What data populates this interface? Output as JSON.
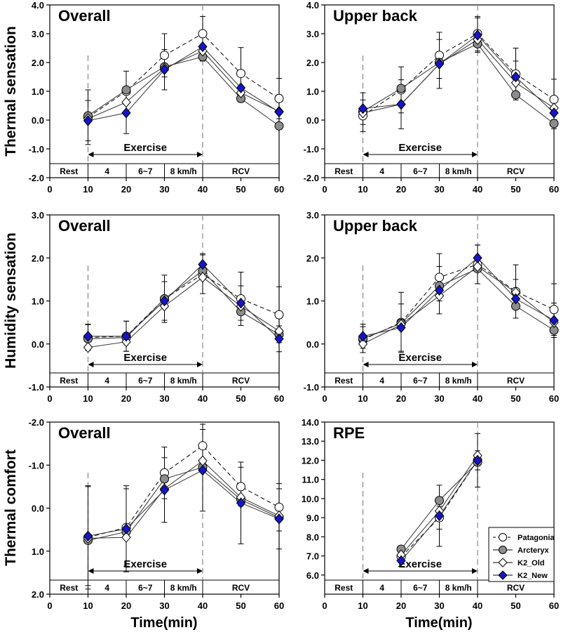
{
  "figure": {
    "x_axis_label": "Time(min)",
    "x_ticks": [
      0,
      10,
      20,
      30,
      40,
      50,
      60
    ],
    "row_labels": [
      "Thermal sensation",
      "Humidity sensation",
      "Thermal comfort"
    ]
  },
  "phases": {
    "rest": "Rest",
    "speed_1": "4",
    "speed_2": "6~7",
    "speed_3": "8 km/h",
    "recovery": "RCV",
    "exercise": "Exercise"
  },
  "legend": {
    "entries": [
      {
        "name": "Patagonia",
        "marker": "circle",
        "color": "#ffffff",
        "dash": true
      },
      {
        "name": "Arcteryx",
        "marker": "circle",
        "color": "#8c8c8c",
        "dash": false
      },
      {
        "name": "K2_Old",
        "marker": "diamond",
        "color": "#ffffff",
        "dash": false
      },
      {
        "name": "K2_New",
        "marker": "diamond",
        "color": "#1515c8",
        "dash": false
      }
    ]
  },
  "chart_data": [
    {
      "type": "line",
      "title": "Overall",
      "ylabel": "Thermal sensation",
      "xlabel": "",
      "xlim": [
        0,
        60
      ],
      "ylim": [
        -2,
        4
      ],
      "yticks": [
        -2,
        -1,
        0,
        1,
        2,
        3,
        4
      ],
      "yinvert": false,
      "x": [
        10,
        20,
        30,
        40,
        50,
        60
      ],
      "series": [
        {
          "name": "Patagonia",
          "values": [
            0.1,
            1.0,
            2.25,
            3.0,
            1.62,
            0.75
          ],
          "err": [
            0.95,
            0.7,
            0.75,
            0.6,
            0.9,
            0.7
          ]
        },
        {
          "name": "Arcteryx",
          "values": [
            0.15,
            1.05,
            1.85,
            2.2,
            0.75,
            -0.2
          ],
          "err": [
            0.0,
            0.0,
            0.0,
            0.0,
            0.0,
            0.0
          ]
        },
        {
          "name": "K2_Old",
          "values": [
            0.05,
            0.62,
            1.8,
            2.4,
            0.95,
            0.3
          ],
          "err": [
            0.0,
            0.0,
            0.0,
            0.0,
            0.0,
            0.0
          ]
        },
        {
          "name": "K2_New",
          "values": [
            -0.02,
            0.25,
            1.75,
            2.55,
            1.12,
            0.28
          ],
          "err": [
            0.7,
            0.72,
            0.7,
            0.5,
            0.5,
            0.6
          ]
        }
      ]
    },
    {
      "type": "line",
      "title": "Upper back",
      "ylabel": "",
      "xlabel": "",
      "xlim": [
        0,
        60
      ],
      "ylim": [
        -2,
        4
      ],
      "yticks": [
        -2,
        -1,
        0,
        1,
        2,
        3,
        4
      ],
      "yinvert": false,
      "x": [
        10,
        20,
        30,
        40,
        50,
        60
      ],
      "series": [
        {
          "name": "Patagonia",
          "values": [
            0.15,
            1.05,
            2.25,
            3.0,
            1.6,
            0.72
          ],
          "err": [
            0.55,
            0.8,
            0.8,
            0.6,
            0.9,
            0.7
          ]
        },
        {
          "name": "Arcteryx",
          "values": [
            0.3,
            1.1,
            2.0,
            2.65,
            0.88,
            -0.12
          ],
          "err": [
            0.0,
            0.0,
            0.0,
            0.0,
            0.0,
            0.0
          ]
        },
        {
          "name": "K2_Old",
          "values": [
            0.25,
            0.55,
            1.95,
            2.8,
            1.3,
            0.42
          ],
          "err": [
            0.0,
            0.0,
            0.0,
            0.0,
            0.0,
            0.0
          ]
        },
        {
          "name": "K2_New",
          "values": [
            0.4,
            0.55,
            1.95,
            2.95,
            1.5,
            0.25
          ],
          "err": [
            0.55,
            0.85,
            0.85,
            0.6,
            0.55,
            0.55
          ]
        }
      ]
    },
    {
      "type": "line",
      "title": "Overall",
      "ylabel": "Humidity sensation",
      "xlabel": "",
      "xlim": [
        0,
        60
      ],
      "ylim": [
        -1,
        3
      ],
      "yticks": [
        -1,
        0,
        1,
        2,
        3
      ],
      "yinvert": false,
      "x": [
        10,
        20,
        30,
        40,
        50,
        60
      ],
      "series": [
        {
          "name": "Patagonia",
          "values": [
            0.15,
            0.18,
            1.05,
            1.62,
            1.05,
            0.68
          ],
          "err": [
            0.3,
            0.35,
            0.55,
            0.45,
            0.62,
            0.65
          ]
        },
        {
          "name": "Arcteryx",
          "values": [
            0.12,
            0.15,
            1.05,
            1.7,
            0.75,
            0.22
          ],
          "err": [
            0.0,
            0.0,
            0.0,
            0.0,
            0.0,
            0.0
          ]
        },
        {
          "name": "K2_Old",
          "values": [
            -0.08,
            0.05,
            0.88,
            1.55,
            0.88,
            0.3
          ],
          "err": [
            0.0,
            0.0,
            0.0,
            0.0,
            0.0,
            0.0
          ]
        },
        {
          "name": "K2_New",
          "values": [
            0.18,
            0.18,
            1.0,
            1.85,
            0.95,
            0.12
          ],
          "err": [
            0.28,
            0.35,
            0.45,
            0.25,
            0.4,
            0.3
          ]
        }
      ]
    },
    {
      "type": "line",
      "title": "Upper back",
      "ylabel": "",
      "xlabel": "",
      "xlim": [
        0,
        60
      ],
      "ylim": [
        -1,
        3
      ],
      "yticks": [
        -1,
        0,
        1,
        2,
        3
      ],
      "yinvert": false,
      "x": [
        10,
        20,
        30,
        40,
        50,
        60
      ],
      "series": [
        {
          "name": "Patagonia",
          "values": [
            0.1,
            0.5,
            1.55,
            1.85,
            1.22,
            0.8
          ],
          "err": [
            0.3,
            0.7,
            0.55,
            0.45,
            0.62,
            0.6
          ]
        },
        {
          "name": "Arcteryx",
          "values": [
            0.12,
            0.48,
            1.35,
            1.75,
            0.88,
            0.32
          ],
          "err": [
            0.0,
            0.0,
            0.0,
            0.0,
            0.0,
            0.0
          ]
        },
        {
          "name": "K2_Old",
          "values": [
            0.0,
            0.45,
            1.12,
            1.8,
            1.2,
            0.5
          ],
          "err": [
            0.0,
            0.0,
            0.0,
            0.0,
            0.0,
            0.0
          ]
        },
        {
          "name": "K2_New",
          "values": [
            0.18,
            0.38,
            1.25,
            2.0,
            1.05,
            0.55
          ],
          "err": [
            0.28,
            0.55,
            0.55,
            0.3,
            0.45,
            0.4
          ]
        }
      ]
    },
    {
      "type": "line",
      "title": "Overall",
      "ylabel": "Thermal comfort",
      "xlabel": "Time(min)",
      "xlim": [
        0,
        60
      ],
      "ylim": [
        -2,
        2
      ],
      "yticks": [
        -2,
        -1,
        0,
        1,
        2
      ],
      "ytick_labels": [
        "-2.0",
        "-1.0",
        "0.0",
        "1.0",
        "2.0"
      ],
      "yinvert": true,
      "x": [
        10,
        20,
        30,
        40,
        50,
        60
      ],
      "series": [
        {
          "name": "Patagonia",
          "values": [
            0.68,
            0.45,
            -0.82,
            -1.45,
            -0.5,
            -0.02
          ],
          "err": [
            1.2,
            0.9,
            0.6,
            0.5,
            0.45,
            0.55
          ]
        },
        {
          "name": "Arcteryx",
          "values": [
            0.75,
            0.55,
            -0.68,
            -0.95,
            -0.2,
            0.22
          ],
          "err": [
            0.0,
            0.0,
            0.0,
            0.0,
            0.0,
            0.0
          ]
        },
        {
          "name": "K2_Old",
          "values": [
            0.7,
            0.68,
            -0.45,
            -1.1,
            -0.25,
            0.18
          ],
          "err": [
            0.0,
            0.0,
            0.0,
            0.0,
            0.0,
            0.0
          ]
        },
        {
          "name": "K2_New",
          "values": [
            0.65,
            0.48,
            -0.42,
            -0.88,
            -0.12,
            0.25
          ],
          "err": [
            1.15,
            1.0,
            0.75,
            0.95,
            0.95,
            0.7
          ]
        }
      ]
    },
    {
      "type": "line",
      "title": "RPE",
      "ylabel": "",
      "xlabel": "Time(min)",
      "xlim": [
        0,
        60
      ],
      "ylim": [
        5,
        14
      ],
      "yticks": [
        6,
        7,
        8,
        9,
        10,
        11,
        12,
        13,
        14
      ],
      "ytick_labels": [
        "6.0",
        "7.0",
        "8.0",
        "9.0",
        "10.0",
        "11.0",
        "12.0",
        "13.0",
        "14.0"
      ],
      "yinvert": false,
      "x": [
        20,
        30,
        40
      ],
      "series": [
        {
          "name": "Patagonia",
          "values": [
            6.95,
            9.0,
            12.0
          ],
          "err": [
            0.3,
            0.6,
            0.5
          ]
        },
        {
          "name": "Arcteryx",
          "values": [
            7.35,
            9.9,
            11.9
          ],
          "err": [
            0.0,
            0.0,
            0.0
          ]
        },
        {
          "name": "K2_Old",
          "values": [
            7.05,
            9.35,
            12.25
          ],
          "err": [
            0.0,
            0.0,
            0.0
          ]
        },
        {
          "name": "K2_New",
          "values": [
            6.75,
            9.1,
            12.0
          ],
          "err": [
            0.3,
            1.6,
            1.4
          ]
        }
      ]
    }
  ]
}
